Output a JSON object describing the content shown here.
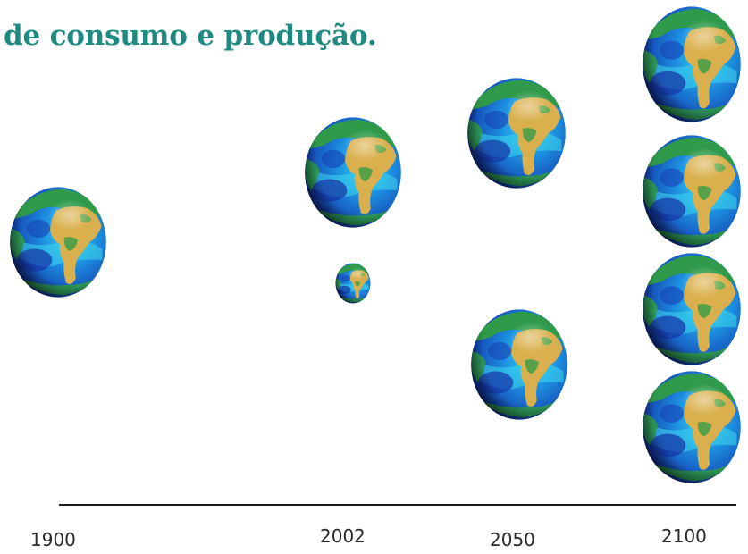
{
  "slide": {
    "title": "de consumo e produção."
  },
  "timeline": {
    "years": [
      "1900",
      "2002",
      "2050",
      "2100"
    ],
    "globes_per_year": [
      1,
      2,
      2,
      4
    ],
    "note_2002": "second 2002 globe is drawn small"
  },
  "colors": {
    "title": "#1f8a80",
    "ocean": "#1c56c4",
    "ocean_light": "#33c8ee",
    "land": "#d9b04d",
    "vegetation": "#2f9a4a",
    "axis": "#1a1a1a"
  },
  "icons": {
    "globe": "earth-globe-icon"
  }
}
